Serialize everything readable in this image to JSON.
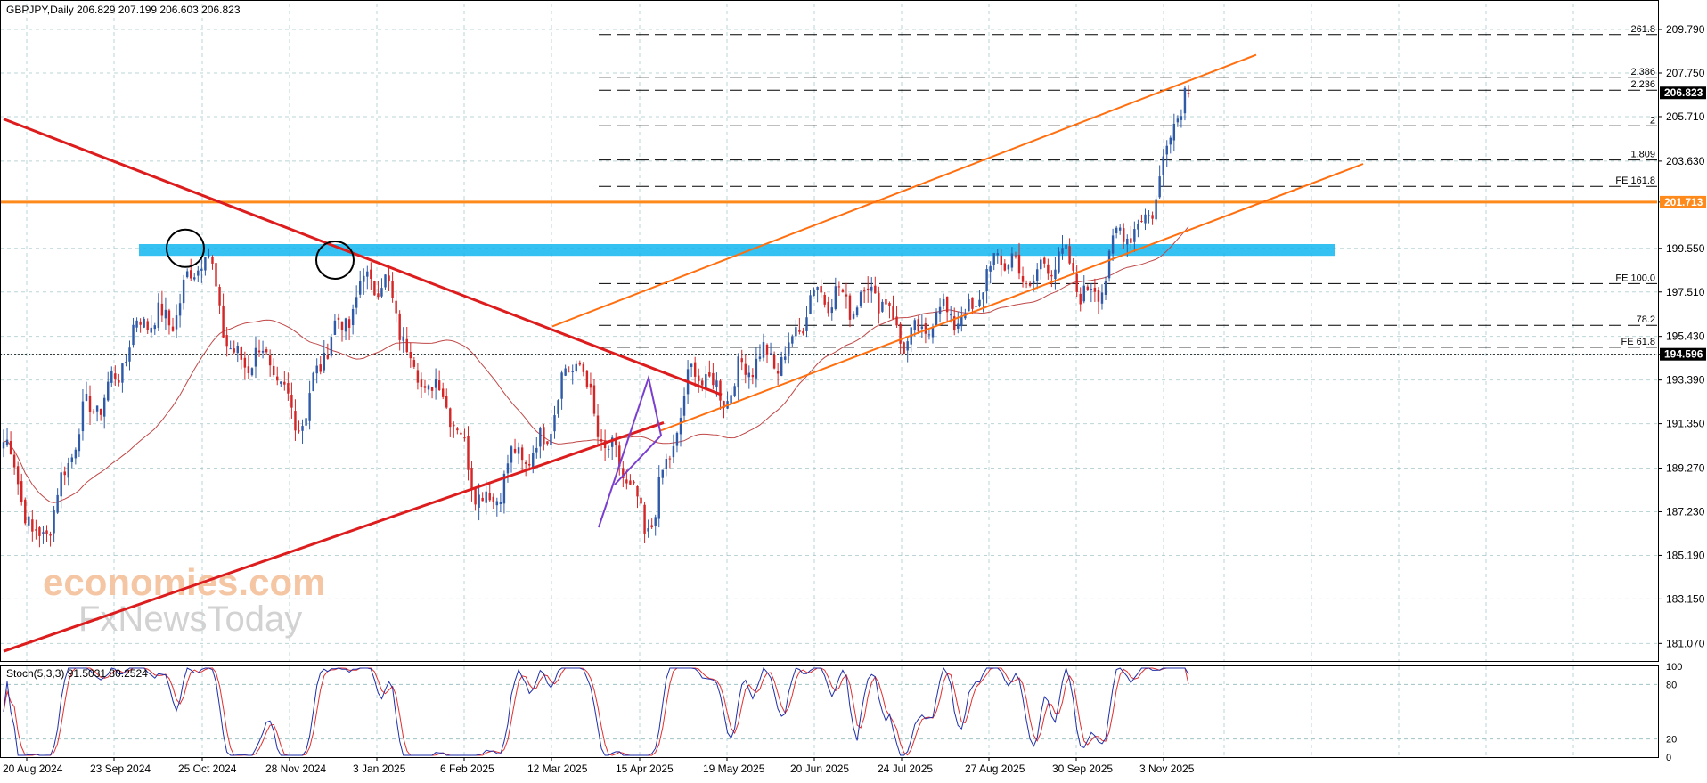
{
  "header": {
    "symbol_label": "GBPJPY,Daily",
    "ohlc_text": "206.829 207.199 206.603 206.823"
  },
  "price_axis": {
    "ticks": [
      "209.790",
      "207.750",
      "205.710",
      "203.630",
      "201.713",
      "199.550",
      "197.510",
      "195.430",
      "194.596",
      "193.390",
      "191.350",
      "189.270",
      "187.230",
      "185.190",
      "183.150",
      "181.070"
    ],
    "current_price_tag": "206.823",
    "resistance_tag": "201.713",
    "dotted_level_tag": "194.596"
  },
  "time_axis": {
    "labels": [
      "20 Aug 2024",
      "23 Sep 2024",
      "25 Oct 2024",
      "28 Nov 2024",
      "3 Jan 2025",
      "6 Feb 2025",
      "12 Mar 2025",
      "15 Apr 2025",
      "19 May 2025",
      "20 Jun 2025",
      "24 Jul 2025",
      "27 Aug 2025",
      "30 Sep 2025",
      "3 Nov 2025"
    ]
  },
  "fib_levels": [
    {
      "label": "261.8",
      "price": 209.55
    },
    {
      "label": "2.386",
      "price": 207.55
    },
    {
      "label": "2.236",
      "price": 206.95
    },
    {
      "label": "2",
      "price": 205.28
    },
    {
      "label": "1.809",
      "price": 203.68
    },
    {
      "label": "FE 161.8",
      "price": 202.45
    },
    {
      "label": "FE 100.0",
      "price": 197.9
    },
    {
      "label": "78.2",
      "price": 195.95
    },
    {
      "label": "FE 61.8",
      "price": 194.92
    }
  ],
  "indicator": {
    "label": "Stoch(5,3,3) 91.5031 80.2524",
    "axis_labels": [
      "100",
      "80",
      "20",
      "0"
    ]
  },
  "watermark": {
    "line1": "economies.com",
    "line2": "FxNewsToday"
  },
  "colors": {
    "bull_candle": "#2e5aa8",
    "bear_candle": "#d42626",
    "downtrend_line": "#dd1d1d",
    "channel_line": "#ff6f0f",
    "resistance_line": "#ff8a1c",
    "resistance_zone": "#12b6ef",
    "ma_line": "#c04848",
    "stoch_main": "#1f2fa8",
    "stoch_signal": "#e03030",
    "wedge_line": "#7b3fcf"
  },
  "chart_data": {
    "type": "candlestick",
    "symbol": "GBPJPY",
    "timeframe": "Daily",
    "last_ohlc": {
      "open": 206.829,
      "high": 207.199,
      "low": 206.603,
      "close": 206.823
    },
    "y_range": [
      180.25,
      211.0
    ],
    "x_date_labels": [
      "20 Aug 2024",
      "23 Sep 2024",
      "25 Oct 2024",
      "28 Nov 2024",
      "3 Jan 2025",
      "6 Feb 2025",
      "12 Mar 2025",
      "15 Apr 2025",
      "19 May 2025",
      "20 Jun 2025",
      "24 Jul 2025",
      "27 Aug 2025",
      "30 Sep 2025",
      "3 Nov 2025"
    ],
    "anchor_closes": [
      {
        "date": "20 Aug 2024",
        "close": 190.5
      },
      {
        "date": "29 Aug 2024",
        "close": 185.7
      },
      {
        "date": "23 Sep 2024",
        "close": 193.9
      },
      {
        "date": "25 Oct 2024",
        "close": 198.8
      },
      {
        "date": "5 Nov 2024",
        "close": 195.0
      },
      {
        "date": "28 Nov 2024",
        "close": 192.0
      },
      {
        "date": "20 Dec 2024",
        "close": 198.6
      },
      {
        "date": "3 Jan 2025",
        "close": 195.9
      },
      {
        "date": "6 Feb 2025",
        "close": 187.6
      },
      {
        "date": "12 Mar 2025",
        "close": 194.0
      },
      {
        "date": "9 Apr 2025",
        "close": 186.0
      },
      {
        "date": "15 Apr 2025",
        "close": 188.9
      },
      {
        "date": "28 Apr 2025",
        "close": 193.3
      },
      {
        "date": "19 May 2025",
        "close": 193.6
      },
      {
        "date": "20 Jun 2025",
        "close": 197.9
      },
      {
        "date": "24 Jul 2025",
        "close": 195.4
      },
      {
        "date": "27 Aug 2025",
        "close": 198.9
      },
      {
        "date": "30 Sep 2025",
        "close": 198.0
      },
      {
        "date": "3 Nov 2025",
        "close": 201.0
      },
      {
        "date": "20 Nov 2025",
        "close": 206.8
      }
    ],
    "series": [
      {
        "name": "resistance",
        "value": 201.713
      },
      {
        "name": "level",
        "value": 194.596
      },
      {
        "name": "zone",
        "range": [
          199.2,
          199.75
        ]
      }
    ],
    "indicator": {
      "name": "Stoch(5,3,3)",
      "main": 91.5031,
      "signal": 80.2524,
      "range": [
        0,
        100
      ],
      "levels": [
        80,
        20
      ]
    },
    "grid": true
  }
}
